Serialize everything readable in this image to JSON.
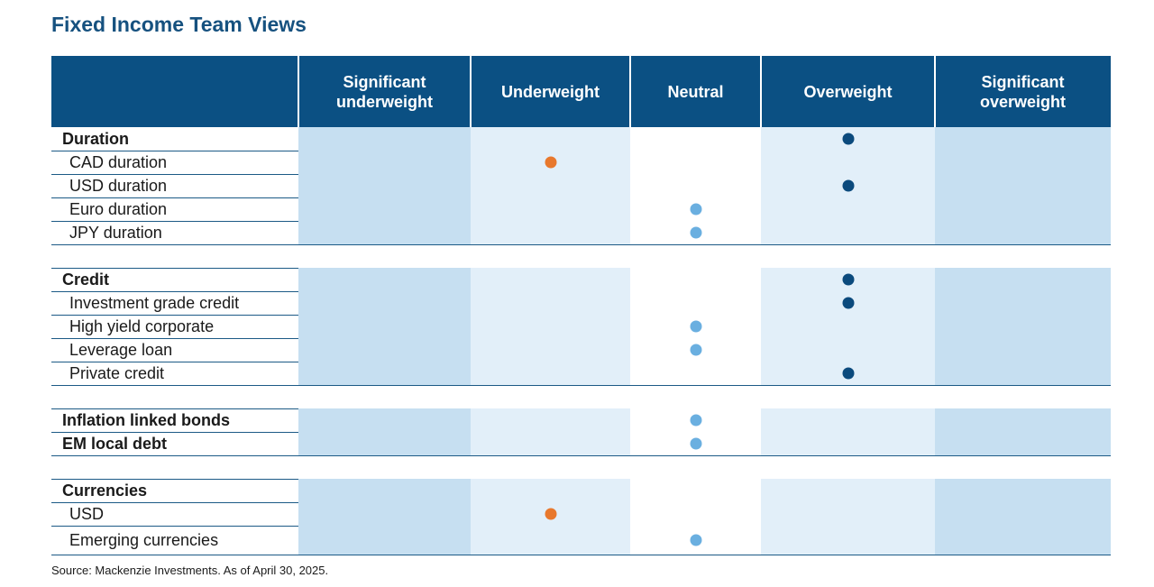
{
  "title": "Fixed Income Team Views",
  "source": "Source: Mackenzie Investments. As of April 30, 2025.",
  "colors": {
    "header_bg": "#0b5083",
    "sig_col": "#c6dff1",
    "light_col": "#e2eff9",
    "white_col": "#ffffff",
    "overweight_dot": "#0b4a7d",
    "neutral_dot": "#6aafe0",
    "underweight_dot": "#e8782d"
  },
  "chart_data": {
    "type": "table",
    "title": "Fixed Income Team Views",
    "columns": [
      "Significant\nunderweight",
      "Underweight",
      "Neutral",
      "Overweight",
      "Significant\noverweight"
    ],
    "groups": [
      {
        "name": "Duration",
        "view": "Overweight",
        "items": [
          {
            "name": "CAD duration",
            "view": "Underweight"
          },
          {
            "name": "USD duration",
            "view": "Overweight"
          },
          {
            "name": "Euro duration",
            "view": "Neutral"
          },
          {
            "name": "JPY duration",
            "view": "Neutral"
          }
        ]
      },
      {
        "name": "Credit",
        "view": "Overweight",
        "items": [
          {
            "name": "Investment grade credit",
            "view": "Overweight"
          },
          {
            "name": "High yield corporate",
            "view": "Neutral"
          },
          {
            "name": "Leverage loan",
            "view": "Neutral"
          },
          {
            "name": "Private credit",
            "view": "Overweight"
          }
        ]
      },
      {
        "name": "Inflation linked bonds",
        "view": "Neutral",
        "items": []
      },
      {
        "name": "EM local debt",
        "view": "Neutral",
        "items": [],
        "no_gap_before": true
      },
      {
        "name": "Currencies",
        "view": null,
        "items": [
          {
            "name": "USD",
            "view": "Underweight"
          },
          {
            "name": "Emerging currencies",
            "view": "Neutral"
          }
        ]
      }
    ]
  }
}
